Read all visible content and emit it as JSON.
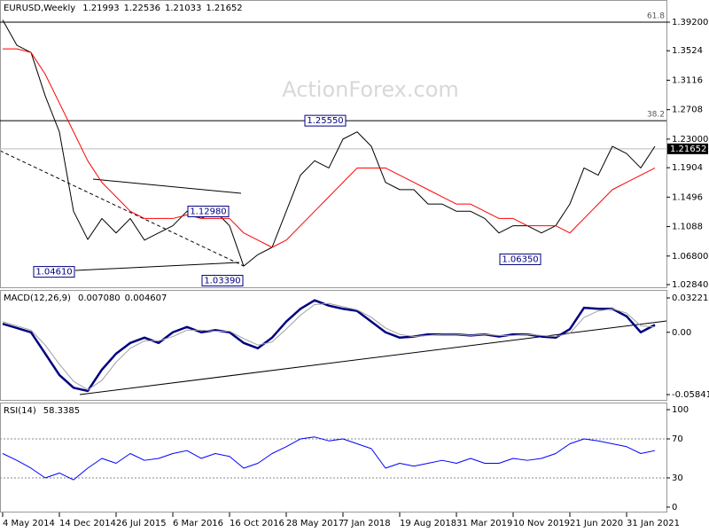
{
  "watermark": "ActionForex.com",
  "chart_data": [
    {
      "type": "line",
      "title": "EURUSD,Weekly",
      "header_values": [
        1.21993,
        1.22536,
        1.21033,
        1.21652
      ],
      "categories": [
        "4 May 2014",
        null,
        null,
        null,
        "14 Dec 2014",
        null,
        null,
        null,
        "26 Jul 2015",
        null,
        null,
        null,
        "6 Mar 2016",
        null,
        null,
        null,
        "16 Oct 2016",
        null,
        null,
        null,
        "28 May 2017",
        null,
        null,
        null,
        "7 Jan 2018",
        null,
        null,
        null,
        "19 Aug 2018",
        null,
        null,
        null,
        "31 Mar 2019",
        null,
        null,
        null,
        "10 Nov 2019",
        null,
        null,
        null,
        "21 Jun 2020",
        null,
        null,
        null,
        "31 Jan 2021",
        null,
        null
      ],
      "series": [
        {
          "color": "#000000",
          "values": [
            1.395,
            1.36,
            1.35,
            1.29,
            1.24,
            1.13,
            1.091,
            1.12,
            1.1,
            1.12,
            1.09,
            1.1,
            1.11,
            1.13,
            1.12,
            1.13,
            1.11,
            1.054,
            1.07,
            1.08,
            1.13,
            1.18,
            1.2,
            1.19,
            1.23,
            1.24,
            1.22,
            1.17,
            1.16,
            1.16,
            1.14,
            1.14,
            1.13,
            1.13,
            1.12,
            1.1,
            1.11,
            1.11,
            1.1,
            1.11,
            1.14,
            1.19,
            1.18,
            1.22,
            1.21,
            1.19,
            1.22
          ]
        },
        {
          "color": "#ff0000",
          "values": [
            1.355,
            1.355,
            1.35,
            1.32,
            1.28,
            1.24,
            1.2,
            1.17,
            1.15,
            1.13,
            1.12,
            1.12,
            1.12,
            1.125,
            1.12,
            1.12,
            1.12,
            1.1,
            1.09,
            1.08,
            1.09,
            1.11,
            1.13,
            1.15,
            1.17,
            1.19,
            1.19,
            1.19,
            1.18,
            1.17,
            1.16,
            1.15,
            1.14,
            1.14,
            1.13,
            1.12,
            1.12,
            1.11,
            1.11,
            1.11,
            1.1,
            1.12,
            1.14,
            1.16,
            1.17,
            1.18,
            1.19
          ]
        }
      ],
      "ylim": [
        1.0235,
        1.4227
      ],
      "yticks": [
        {
          "value": 1.392,
          "label": "1.39200"
        },
        1.3524,
        1.3116,
        1.2708,
        {
          "value": 1.23,
          "label": "1.23000"
        },
        1.1904,
        1.1496,
        1.1088,
        {
          "value": 1.068,
          "label": "1.06800"
        },
        {
          "value": 1.0284,
          "label": "1.02840"
        }
      ],
      "levels": [
        {
          "price": 1.392,
          "fib": 61.8
        },
        {
          "price": 1.2555,
          "fib": 38.2
        }
      ],
      "last_price": 1.21652,
      "annotations": [
        {
          "value": 1.0461,
          "label": "1.04610"
        },
        {
          "value": 1.1298,
          "label": "1.12980"
        },
        {
          "value": 1.0339,
          "label": "1.03390"
        },
        {
          "value": 1.2555,
          "label": "1.25550"
        },
        {
          "value": 1.0635,
          "label": "1.06350"
        }
      ]
    },
    {
      "type": "line",
      "title": "MACD(12,26,9)",
      "header_values": [
        {
          "value": 0.00708,
          "label": "0.007080"
        },
        0.004607
      ],
      "series": [
        {
          "color": "#000080",
          "values": [
            0.008,
            0.004,
            0.0,
            -0.02,
            -0.04,
            -0.052,
            -0.055,
            -0.035,
            -0.02,
            -0.01,
            -0.005,
            -0.01,
            0.0,
            0.005,
            0.0,
            0.002,
            0.0,
            -0.01,
            -0.015,
            -0.005,
            0.01,
            0.022,
            0.03,
            0.025,
            0.022,
            0.02,
            0.01,
            0.0,
            -0.005,
            -0.004,
            -0.002,
            -0.002,
            -0.002,
            -0.003,
            -0.002,
            -0.004,
            -0.002,
            -0.002,
            -0.004,
            -0.005,
            0.003,
            0.023,
            0.022,
            0.022,
            0.015,
            0.0,
            0.007
          ]
        },
        {
          "color": "#a0a0a0",
          "values": [
            0.01,
            0.006,
            0.002,
            -0.012,
            -0.03,
            -0.046,
            -0.054,
            -0.045,
            -0.028,
            -0.015,
            -0.008,
            -0.008,
            -0.004,
            0.002,
            0.002,
            0.001,
            0.001,
            -0.006,
            -0.012,
            -0.009,
            0.003,
            0.016,
            0.026,
            0.027,
            0.024,
            0.021,
            0.014,
            0.004,
            -0.002,
            -0.004,
            -0.003,
            -0.002,
            -0.002,
            -0.003,
            -0.002,
            -0.003,
            -0.003,
            -0.002,
            -0.003,
            -0.004,
            -0.001,
            0.014,
            0.02,
            0.022,
            0.018,
            0.006,
            0.005
          ]
        }
      ],
      "ylim": [
        -0.0642,
        0.0397
      ],
      "yticks": [
        0.032215,
        {
          "value": 0,
          "label": "0.00"
        },
        -0.058413
      ]
    },
    {
      "type": "line",
      "title": "RSI(14)",
      "header_values": [
        58.3385
      ],
      "series": [
        {
          "color": "#0000ff",
          "values": [
            55,
            48,
            40,
            30,
            35,
            28,
            40,
            50,
            45,
            55,
            48,
            50,
            55,
            58,
            50,
            55,
            52,
            40,
            45,
            55,
            62,
            70,
            72,
            68,
            70,
            65,
            60,
            40,
            45,
            42,
            45,
            48,
            45,
            50,
            45,
            45,
            50,
            48,
            50,
            55,
            65,
            70,
            68,
            65,
            62,
            55,
            58
          ]
        }
      ],
      "ylim": [
        -5.5,
        107.3
      ],
      "yticks": [
        100,
        70,
        30,
        0
      ],
      "levels": [
        70,
        30
      ]
    }
  ]
}
